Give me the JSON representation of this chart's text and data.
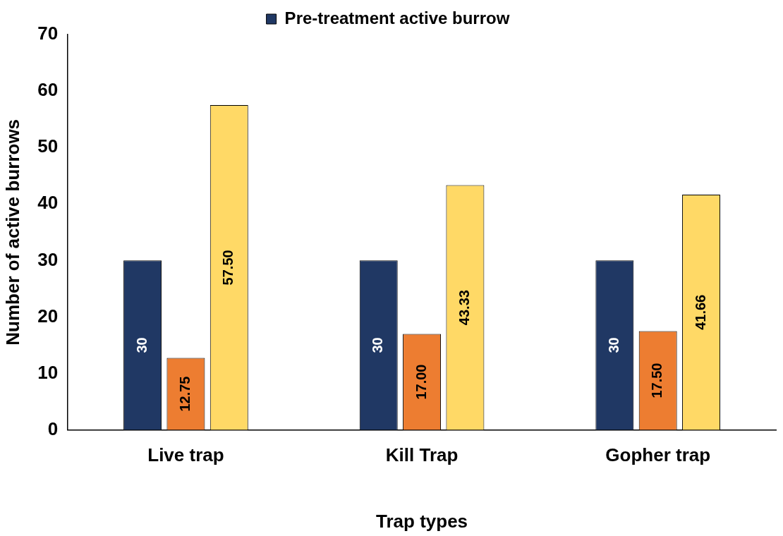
{
  "chart_data": {
    "type": "bar",
    "xlabel": "Trap types",
    "ylabel": "Number of active burrows",
    "categories": [
      "Live trap",
      "Kill Trap",
      "Gopher trap"
    ],
    "series": [
      {
        "name": "Pre-treatment active burrow",
        "color": "#203864",
        "values": [
          30,
          30,
          30
        ],
        "value_labels": [
          "30",
          "30",
          "30"
        ]
      },
      {
        "color": "#ed7d31",
        "values": [
          12.75,
          17,
          17.5
        ],
        "value_labels": [
          "12.75",
          "17.00",
          "17.50"
        ]
      },
      {
        "color": "#ffd966",
        "values": [
          57.5,
          43.33,
          41.66
        ],
        "value_labels": [
          "57.50",
          "43.33",
          "41.66"
        ]
      }
    ],
    "ylim": [
      0,
      70
    ],
    "yticks": [
      0,
      10,
      20,
      30,
      40,
      50,
      60,
      70
    ],
    "grid": false,
    "legend": "top"
  }
}
